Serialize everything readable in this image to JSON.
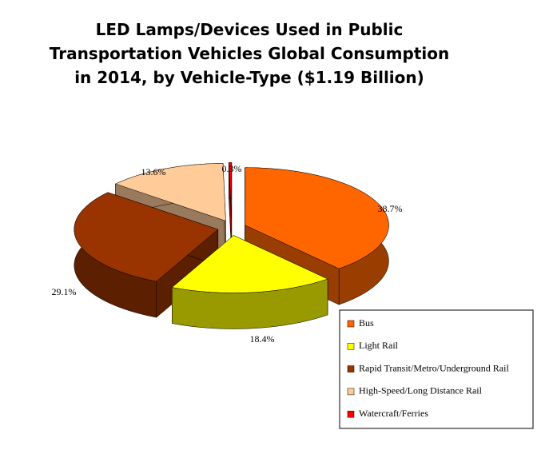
{
  "chart_data": {
    "type": "pie3d",
    "title": [
      "LED Lamps/Devices Used in Public",
      "Transportation Vehicles Global Consumption",
      "in 2014, by Vehicle-Type ($1.19 Billion)"
    ],
    "categories": [
      "Bus",
      "Light Rail",
      "Rapid Transit/Metro/Underground Rail",
      "High-Speed/Long Distance Rail",
      "Watercraft/Ferries"
    ],
    "values": [
      38.7,
      18.4,
      29.1,
      13.6,
      0.3
    ],
    "value_labels": [
      "38.7%",
      "18.4%",
      "29.1%",
      "13.6%",
      "0.3%"
    ],
    "colors": [
      "#ff6600",
      "#ffff00",
      "#993300",
      "#ffcc99",
      "#ff0000"
    ],
    "legend": "bottom-right"
  }
}
